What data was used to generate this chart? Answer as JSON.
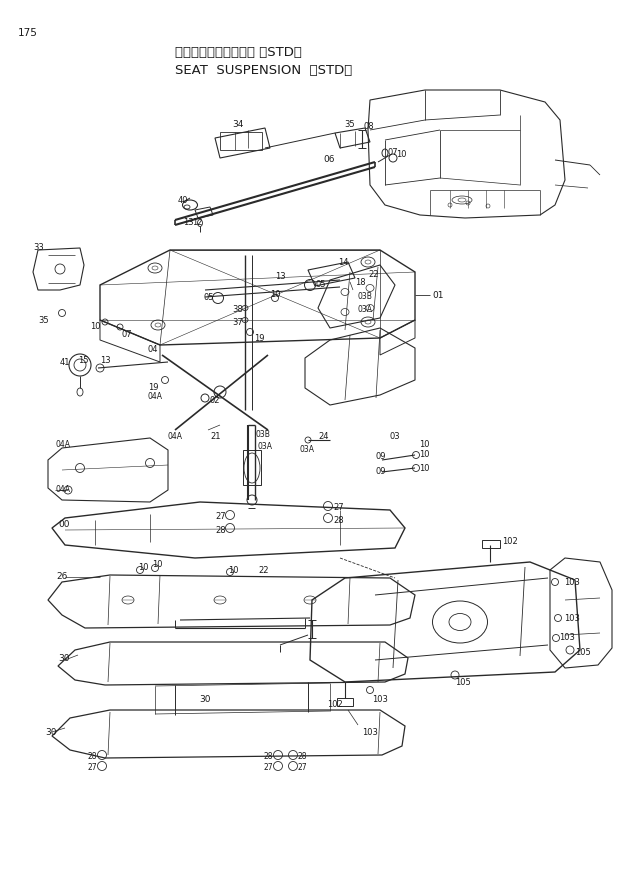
{
  "page_number": "175",
  "title_japanese": "シートサスペンション 〈STD〉",
  "title_english": "SEAT  SUSPENSION  〈STD〉",
  "background_color": "#f5f5f5",
  "line_color": "#2a2a2a",
  "text_color": "#1a1a1a",
  "fig_width": 6.2,
  "fig_height": 8.73,
  "dpi": 100
}
